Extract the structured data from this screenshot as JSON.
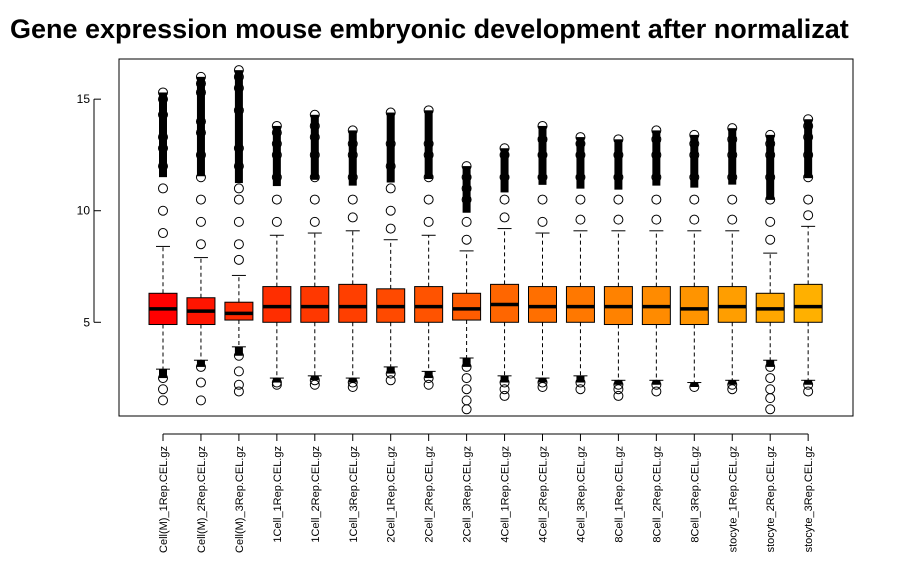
{
  "chart_data": {
    "type": "box",
    "title": "Gene expression mouse embryonic development after normalizat",
    "xlabel": "",
    "ylabel": "",
    "ylim": [
      0.8,
      16.8
    ],
    "yticks": [
      5,
      10,
      15
    ],
    "grid": false,
    "legend": "none",
    "categories": [
      "Cell(M)_1Rep.CEL.gz",
      "Cell(M)_2Rep.CEL.gz",
      "Cell(M)_3Rep.CEL.gz",
      "1Cell_1Rep.CEL.gz",
      "1Cell_2Rep.CEL.gz",
      "1Cell_3Rep.CEL.gz",
      "2Cell_1Rep.CEL.gz",
      "2Cell_2Rep.CEL.gz",
      "2Cell_3Rep.CEL.gz",
      "4Cell_1Rep.CEL.gz",
      "4Cell_2Rep.CEL.gz",
      "4Cell_3Rep.CEL.gz",
      "8Cell_1Rep.CEL.gz",
      "8Cell_2Rep.CEL.gz",
      "8Cell_3Rep.CEL.gz",
      "stocyte_1Rep.CEL.gz",
      "stocyte_2Rep.CEL.gz",
      "stocyte_3Rep.CEL.gz"
    ],
    "boxes": [
      {
        "q1": 4.9,
        "median": 5.6,
        "q3": 6.3,
        "whisker_low": 2.9,
        "whisker_high": 8.4,
        "outliers_high": [
          9.0,
          10.0,
          11.0,
          12.0,
          12.8,
          13.3,
          14.3,
          15.0,
          15.3
        ],
        "outliers_low": [
          2.5,
          2.0,
          1.5
        ]
      },
      {
        "q1": 4.9,
        "median": 5.5,
        "q3": 6.1,
        "whisker_low": 3.3,
        "whisker_high": 7.9,
        "outliers_high": [
          8.5,
          9.5,
          10.5,
          11.5,
          12.5,
          13.5,
          14.0,
          15.3,
          15.7,
          16.0
        ],
        "outliers_low": [
          3.0,
          2.3,
          1.5
        ]
      },
      {
        "q1": 5.1,
        "median": 5.4,
        "q3": 5.9,
        "whisker_low": 3.9,
        "whisker_high": 7.1,
        "outliers_high": [
          7.8,
          8.5,
          9.5,
          10.5,
          11.0,
          12.0,
          12.8,
          14.5,
          15.5,
          16.0,
          16.3
        ],
        "outliers_low": [
          3.5,
          2.8,
          2.2,
          1.9
        ]
      },
      {
        "q1": 5.0,
        "median": 5.7,
        "q3": 6.6,
        "whisker_low": 2.5,
        "whisker_high": 8.9,
        "outliers_high": [
          9.5,
          10.5,
          11.5,
          12.5,
          13.0,
          13.5,
          13.8
        ],
        "outliers_low": [
          2.3,
          2.2
        ]
      },
      {
        "q1": 5.0,
        "median": 5.7,
        "q3": 6.6,
        "whisker_low": 2.6,
        "whisker_high": 9.0,
        "outliers_high": [
          9.5,
          10.5,
          11.5,
          12.5,
          13.3,
          13.8,
          14.3
        ],
        "outliers_low": [
          2.4,
          2.2
        ]
      },
      {
        "q1": 5.0,
        "median": 5.7,
        "q3": 6.7,
        "whisker_low": 2.5,
        "whisker_high": 9.1,
        "outliers_high": [
          9.7,
          10.5,
          11.5,
          12.5,
          13.0,
          13.6
        ],
        "outliers_low": [
          2.3,
          2.1
        ]
      },
      {
        "q1": 5.0,
        "median": 5.7,
        "q3": 6.5,
        "whisker_low": 3.0,
        "whisker_high": 8.7,
        "outliers_high": [
          9.2,
          10.0,
          11.0,
          12.0,
          13.0,
          14.4
        ],
        "outliers_low": [
          2.7,
          2.4
        ]
      },
      {
        "q1": 5.0,
        "median": 5.7,
        "q3": 6.6,
        "whisker_low": 2.8,
        "whisker_high": 8.9,
        "outliers_high": [
          9.5,
          10.5,
          11.5,
          12.5,
          13.0,
          14.5
        ],
        "outliers_low": [
          2.5,
          2.2
        ]
      },
      {
        "q1": 5.1,
        "median": 5.6,
        "q3": 6.3,
        "whisker_low": 3.4,
        "whisker_high": 8.2,
        "outliers_high": [
          8.7,
          9.5,
          10.5,
          11.0,
          11.5,
          12.0
        ],
        "outliers_low": [
          3.0,
          2.5,
          2.0,
          1.5,
          1.1
        ]
      },
      {
        "q1": 5.0,
        "median": 5.8,
        "q3": 6.7,
        "whisker_low": 2.6,
        "whisker_high": 9.2,
        "outliers_high": [
          9.7,
          10.5,
          11.5,
          12.5,
          12.8
        ],
        "outliers_low": [
          2.3,
          2.0,
          1.7
        ]
      },
      {
        "q1": 5.0,
        "median": 5.7,
        "q3": 6.6,
        "whisker_low": 2.5,
        "whisker_high": 9.0,
        "outliers_high": [
          9.5,
          10.5,
          11.5,
          12.5,
          13.2,
          13.8
        ],
        "outliers_low": [
          2.3,
          2.1
        ]
      },
      {
        "q1": 5.0,
        "median": 5.7,
        "q3": 6.6,
        "whisker_low": 2.6,
        "whisker_high": 9.1,
        "outliers_high": [
          9.6,
          10.5,
          11.5,
          12.5,
          13.0,
          13.3
        ],
        "outliers_low": [
          2.3,
          2.0
        ]
      },
      {
        "q1": 4.9,
        "median": 5.7,
        "q3": 6.6,
        "whisker_low": 2.4,
        "whisker_high": 9.1,
        "outliers_high": [
          9.6,
          10.5,
          11.5,
          12.5,
          13.2
        ],
        "outliers_low": [
          2.2,
          2.0,
          1.7
        ]
      },
      {
        "q1": 4.9,
        "median": 5.7,
        "q3": 6.6,
        "whisker_low": 2.4,
        "whisker_high": 9.1,
        "outliers_high": [
          9.6,
          10.5,
          11.5,
          12.5,
          13.2,
          13.6
        ],
        "outliers_low": [
          2.2,
          1.9
        ]
      },
      {
        "q1": 4.9,
        "median": 5.6,
        "q3": 6.6,
        "whisker_low": 2.3,
        "whisker_high": 9.1,
        "outliers_high": [
          9.6,
          10.5,
          11.5,
          12.5,
          13.0,
          13.4
        ],
        "outliers_low": [
          2.1
        ]
      },
      {
        "q1": 5.0,
        "median": 5.7,
        "q3": 6.6,
        "whisker_low": 2.4,
        "whisker_high": 9.1,
        "outliers_high": [
          9.6,
          10.5,
          11.5,
          12.5,
          13.2,
          13.7
        ],
        "outliers_low": [
          2.2,
          2.0
        ]
      },
      {
        "q1": 5.0,
        "median": 5.6,
        "q3": 6.3,
        "whisker_low": 3.3,
        "whisker_high": 8.1,
        "outliers_high": [
          8.7,
          9.5,
          10.5,
          11.5,
          12.5,
          13.0,
          13.4
        ],
        "outliers_low": [
          3.0,
          2.5,
          2.0,
          1.6,
          1.1
        ]
      },
      {
        "q1": 5.0,
        "median": 5.7,
        "q3": 6.7,
        "whisker_low": 2.4,
        "whisker_high": 9.3,
        "outliers_high": [
          9.8,
          10.5,
          11.5,
          12.5,
          13.3,
          13.8,
          14.1
        ],
        "outliers_low": [
          2.2,
          1.9
        ]
      }
    ],
    "colors": [
      "#ff0000",
      "#ff1500",
      "#ff2a00",
      "#ff2e00",
      "#ff3800",
      "#ff3f00",
      "#ff4a00",
      "#ff5300",
      "#ff5c00",
      "#ff6600",
      "#ff6f00",
      "#ff7800",
      "#ff8200",
      "#ff8b00",
      "#ff9400",
      "#ff9e00",
      "#ffa700",
      "#ffb000"
    ]
  }
}
